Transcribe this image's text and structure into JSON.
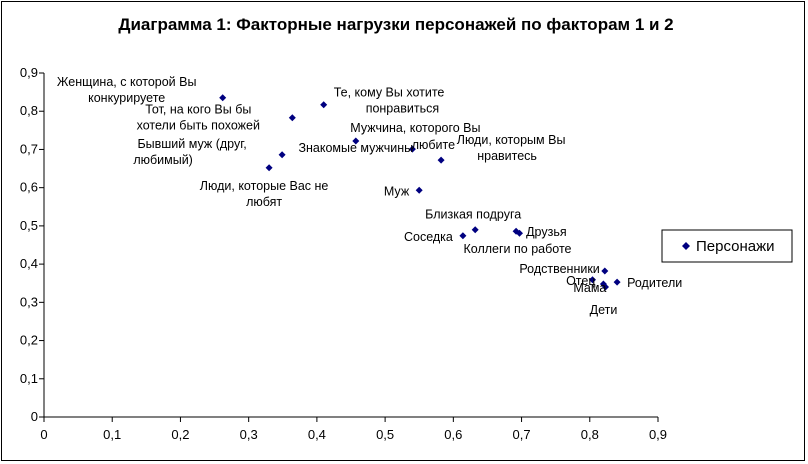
{
  "chart_data": {
    "type": "scatter",
    "title": "Диаграмма 1: Факторные нагрузки персонажей по факторам 1 и 2",
    "xlabel": "",
    "ylabel": "",
    "xlim": [
      0,
      0.9
    ],
    "ylim": [
      0,
      0.9
    ],
    "x_ticks": [
      "0",
      "0,1",
      "0,2",
      "0,3",
      "0,4",
      "0,5",
      "0,6",
      "0,7",
      "0,8",
      "0,9"
    ],
    "y_ticks": [
      "0",
      "0,1",
      "0,2",
      "0,3",
      "0,4",
      "0,5",
      "0,6",
      "0,7",
      "0,8",
      "0,9"
    ],
    "grid": false,
    "legend_position": "right",
    "series": [
      {
        "name": "Персонажи",
        "color": "#000080",
        "marker": "diamond",
        "points": [
          {
            "label": "Женщина, с которой Вы конкурируете",
            "x": 0.262,
            "y": 0.835
          },
          {
            "label": "Тот, на кого Вы бы хотели быть похожей",
            "x": 0.364,
            "y": 0.783
          },
          {
            "label": "Те, кому Вы хотите понравиться",
            "x": 0.41,
            "y": 0.817
          },
          {
            "label": "Знакомые мужчины",
            "x": 0.457,
            "y": 0.722
          },
          {
            "label": "Бывший муж (друг, любимый)",
            "x": 0.349,
            "y": 0.686
          },
          {
            "label": "Люди, которые Вас не любят",
            "x": 0.33,
            "y": 0.652
          },
          {
            "label": "Мужчина, которого Вы любите",
            "x": 0.54,
            "y": 0.701
          },
          {
            "label": "Люди, которым Вы нравитесь",
            "x": 0.582,
            "y": 0.672
          },
          {
            "label": "Муж",
            "x": 0.55,
            "y": 0.593
          },
          {
            "label": "Близкая подруга",
            "x": 0.632,
            "y": 0.49
          },
          {
            "label": "Соседка",
            "x": 0.614,
            "y": 0.474
          },
          {
            "label": "Друзья",
            "x": 0.692,
            "y": 0.486
          },
          {
            "label": "Коллеги по работе",
            "x": 0.697,
            "y": 0.481
          },
          {
            "label": "Родственники",
            "x": 0.822,
            "y": 0.382
          },
          {
            "label": "Отец",
            "x": 0.804,
            "y": 0.359
          },
          {
            "label": "Мама",
            "x": 0.82,
            "y": 0.348
          },
          {
            "label": "Родители",
            "x": 0.84,
            "y": 0.353
          },
          {
            "label": "Дети",
            "x": 0.823,
            "y": 0.34
          }
        ]
      }
    ]
  }
}
